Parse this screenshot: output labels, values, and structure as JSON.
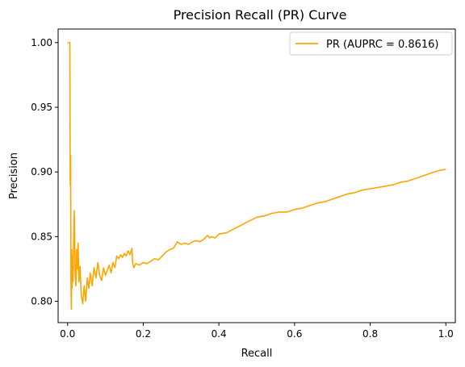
{
  "chart_data": {
    "type": "line",
    "title": "Precision Recall (PR) Curve",
    "xlabel": "Recall",
    "ylabel": "Precision",
    "xlim": [
      -0.025,
      1.025
    ],
    "ylim": [
      0.7835,
      1.0105
    ],
    "xticks": [
      0.0,
      0.2,
      0.4,
      0.6,
      0.8,
      1.0
    ],
    "xtick_labels": [
      "0.0",
      "0.2",
      "0.4",
      "0.6",
      "0.8",
      "1.0"
    ],
    "yticks": [
      0.8,
      0.85,
      0.9,
      0.95,
      1.0
    ],
    "ytick_labels": [
      "0.80",
      "0.85",
      "0.90",
      "0.95",
      "1.00"
    ],
    "grid": false,
    "legend_position": "top-right",
    "series": [
      {
        "name": "PR (AUPRC = 0.8616)",
        "color": "#ffa500",
        "x": [
          0.0,
          0.003,
          0.006,
          0.007,
          0.008,
          0.009,
          0.01,
          0.011,
          0.012,
          0.013,
          0.014,
          0.016,
          0.018,
          0.02,
          0.022,
          0.024,
          0.026,
          0.028,
          0.03,
          0.033,
          0.036,
          0.04,
          0.044,
          0.048,
          0.052,
          0.056,
          0.06,
          0.065,
          0.07,
          0.075,
          0.08,
          0.085,
          0.09,
          0.095,
          0.1,
          0.105,
          0.11,
          0.115,
          0.12,
          0.125,
          0.13,
          0.135,
          0.14,
          0.145,
          0.15,
          0.155,
          0.16,
          0.165,
          0.17,
          0.172,
          0.175,
          0.18,
          0.19,
          0.2,
          0.21,
          0.22,
          0.23,
          0.24,
          0.25,
          0.26,
          0.27,
          0.28,
          0.29,
          0.3,
          0.31,
          0.32,
          0.33,
          0.34,
          0.35,
          0.36,
          0.37,
          0.375,
          0.38,
          0.39,
          0.4,
          0.42,
          0.44,
          0.46,
          0.48,
          0.5,
          0.52,
          0.54,
          0.56,
          0.58,
          0.6,
          0.62,
          0.64,
          0.66,
          0.68,
          0.7,
          0.72,
          0.74,
          0.76,
          0.78,
          0.8,
          0.82,
          0.84,
          0.86,
          0.88,
          0.9,
          0.92,
          0.94,
          0.96,
          0.98,
          1.0
        ],
        "y": [
          1.0,
          1.0,
          1.0,
          0.89,
          0.913,
          0.815,
          0.794,
          0.84,
          0.81,
          0.835,
          0.815,
          0.845,
          0.87,
          0.82,
          0.812,
          0.84,
          0.825,
          0.845,
          0.815,
          0.827,
          0.805,
          0.798,
          0.812,
          0.8,
          0.818,
          0.81,
          0.822,
          0.812,
          0.826,
          0.818,
          0.83,
          0.82,
          0.816,
          0.826,
          0.82,
          0.824,
          0.828,
          0.822,
          0.83,
          0.826,
          0.835,
          0.833,
          0.836,
          0.834,
          0.837,
          0.835,
          0.839,
          0.836,
          0.841,
          0.83,
          0.826,
          0.829,
          0.828,
          0.83,
          0.829,
          0.831,
          0.833,
          0.832,
          0.835,
          0.838,
          0.84,
          0.841,
          0.846,
          0.844,
          0.845,
          0.844,
          0.846,
          0.847,
          0.846,
          0.848,
          0.851,
          0.849,
          0.85,
          0.849,
          0.852,
          0.853,
          0.856,
          0.859,
          0.862,
          0.865,
          0.866,
          0.868,
          0.869,
          0.869,
          0.871,
          0.872,
          0.874,
          0.876,
          0.877,
          0.879,
          0.881,
          0.883,
          0.884,
          0.886,
          0.887,
          0.888,
          0.889,
          0.89,
          0.892,
          0.893,
          0.895,
          0.897,
          0.899,
          0.901,
          0.902
        ]
      }
    ]
  }
}
